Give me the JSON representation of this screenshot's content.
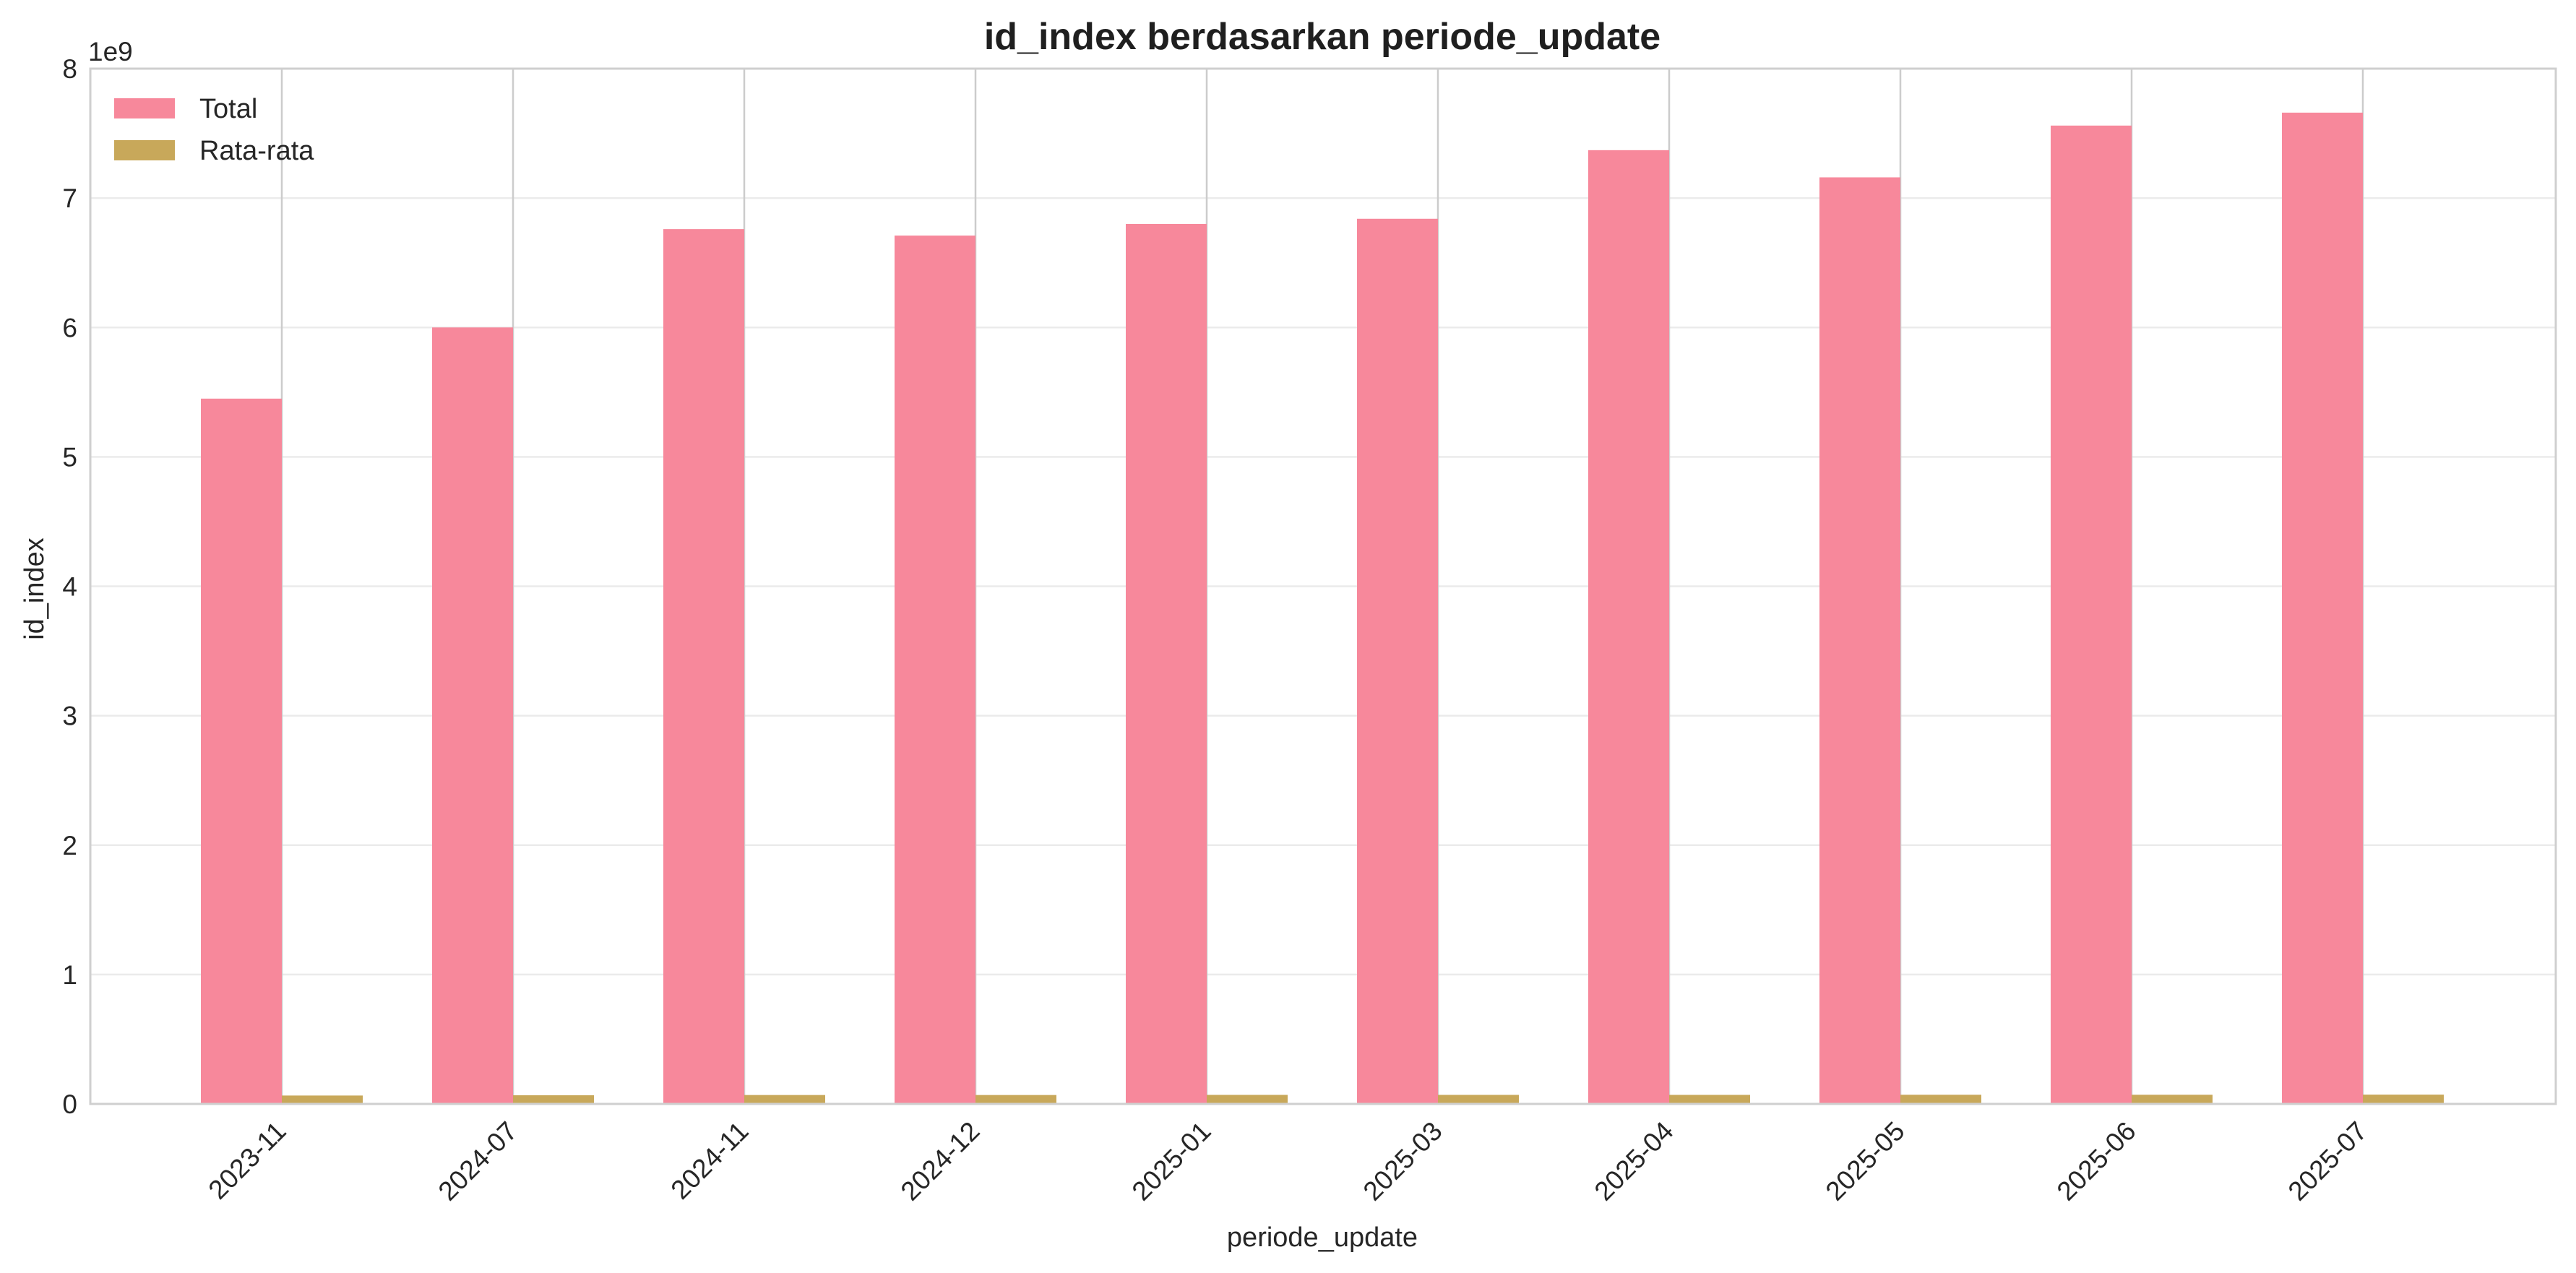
{
  "chart_data": {
    "type": "bar",
    "title": "id_index berdasarkan periode_update",
    "xlabel": "periode_update",
    "ylabel": "id_index",
    "y_offset_label": "1e9",
    "categories": [
      "2023-11",
      "2024-07",
      "2024-11",
      "2024-12",
      "2025-01",
      "2025-03",
      "2025-04",
      "2025-05",
      "2025-06",
      "2025-07"
    ],
    "series": [
      {
        "name": "Total",
        "color": "#f7889b",
        "values": [
          5.45,
          6.0,
          6.76,
          6.71,
          6.8,
          6.84,
          7.37,
          7.16,
          7.56,
          7.66
        ]
      },
      {
        "name": "Rata-rata",
        "color": "#c8a85a",
        "values": [
          0.065,
          0.067,
          0.069,
          0.069,
          0.07,
          0.07,
          0.07,
          0.071,
          0.071,
          0.072
        ]
      }
    ],
    "ylim": [
      0,
      8
    ],
    "yticks": [
      0,
      1,
      2,
      3,
      4,
      5,
      6,
      7,
      8
    ],
    "grid": true,
    "legend_position": "top-left"
  }
}
